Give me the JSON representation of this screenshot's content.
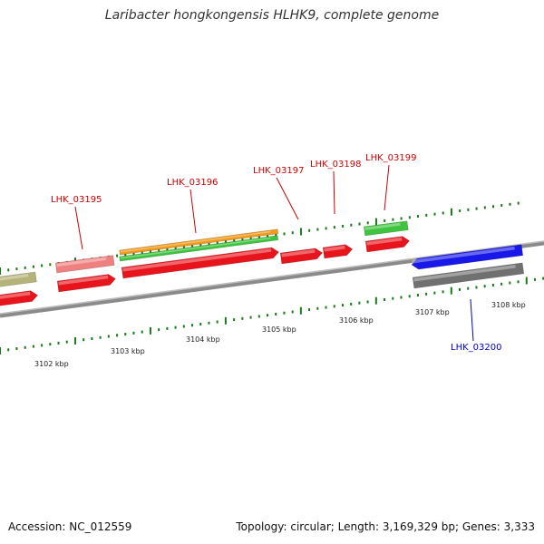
{
  "title": "Laribacter hongkongensis HLHK9, complete genome",
  "footer": {
    "accession": "Accession: NC_012559",
    "summary": "Topology: circular; Length: 3,169,329 bp; Genes: 3,333"
  },
  "colors": {
    "forward_label": "#cc0000",
    "reverse_label": "#0000cc",
    "cds": "#e8141c",
    "trna_like": "#f08080",
    "olive": "#b5b27a",
    "orange": "#f39a1c",
    "green": "#3ec43e",
    "blue": "#1818e8",
    "gray": "#707070",
    "backbone": "#8a8a8a",
    "tick": "#1a7a1a"
  },
  "scale_labels": [
    "3102 kbp",
    "3103 kbp",
    "3104 kbp",
    "3105 kbp",
    "3106 kbp",
    "3107 kbp",
    "3108 kbp"
  ],
  "gene_labels": [
    {
      "text": "LHK_03195",
      "strand": "forward"
    },
    {
      "text": "LHK_03196",
      "strand": "forward"
    },
    {
      "text": "LHK_03197",
      "strand": "forward"
    },
    {
      "text": "LHK_03198",
      "strand": "forward"
    },
    {
      "text": "LHK_03199",
      "strand": "forward"
    },
    {
      "text": "LHK_03200",
      "strand": "reverse"
    }
  ]
}
